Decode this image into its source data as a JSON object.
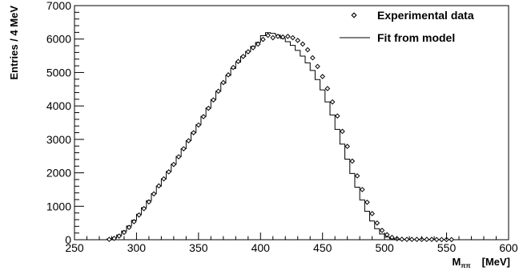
{
  "chart_data": {
    "type": "line",
    "title": "",
    "xlabel": {
      "main": "M",
      "subscript": "ππ",
      "unit": "[MeV]"
    },
    "ylabel": "Entries / 4 MeV",
    "xlim": [
      250,
      600
    ],
    "ylim": [
      0,
      7000
    ],
    "x_ticks": [
      "250",
      "300",
      "350",
      "400",
      "450",
      "500",
      "550",
      "600"
    ],
    "y_ticks": [
      "0",
      "1000",
      "2000",
      "3000",
      "4000",
      "5000",
      "6000",
      "7000"
    ],
    "grid": false,
    "legend_position": "top-right",
    "bin_width": 4,
    "series": [
      {
        "name": "Experimental data",
        "style": "open-diamond-markers",
        "color": "#000000",
        "x": [
          278,
          282,
          286,
          290,
          294,
          298,
          302,
          306,
          310,
          314,
          318,
          322,
          326,
          330,
          334,
          338,
          342,
          346,
          350,
          354,
          358,
          362,
          366,
          370,
          374,
          378,
          382,
          386,
          390,
          394,
          398,
          402,
          406,
          410,
          414,
          418,
          422,
          426,
          430,
          434,
          438,
          442,
          446,
          450,
          454,
          458,
          462,
          466,
          470,
          474,
          478,
          482,
          486,
          490,
          494,
          498,
          502,
          506,
          510,
          514,
          518,
          522,
          526,
          530,
          534,
          538,
          542,
          546,
          550,
          554
        ],
        "y": [
          10,
          40,
          110,
          220,
          370,
          540,
          740,
          930,
          1130,
          1370,
          1610,
          1820,
          2030,
          2250,
          2480,
          2720,
          2960,
          3200,
          3430,
          3680,
          3930,
          4180,
          4440,
          4700,
          4930,
          5150,
          5330,
          5480,
          5620,
          5740,
          5850,
          5990,
          6110,
          6040,
          6080,
          6060,
          6080,
          6040,
          5960,
          5850,
          5680,
          5440,
          5180,
          4880,
          4520,
          4120,
          3700,
          3240,
          2790,
          2350,
          1910,
          1500,
          1120,
          780,
          500,
          280,
          150,
          70,
          30,
          15,
          10,
          10,
          10,
          10,
          10,
          10,
          5,
          5,
          5,
          5
        ]
      },
      {
        "name": "Fit from model",
        "style": "histogram-step-line",
        "color": "#000000",
        "x": [
          278,
          282,
          286,
          290,
          294,
          298,
          302,
          306,
          310,
          314,
          318,
          322,
          326,
          330,
          334,
          338,
          342,
          346,
          350,
          354,
          358,
          362,
          366,
          370,
          374,
          378,
          382,
          386,
          390,
          394,
          398,
          402,
          406,
          410,
          414,
          418,
          422,
          426,
          430,
          434,
          438,
          442,
          446,
          450,
          454,
          458,
          462,
          466,
          470,
          474,
          478,
          482,
          486,
          490,
          494,
          498,
          502,
          506,
          510,
          514,
          518,
          522,
          526,
          530
        ],
        "y": [
          20,
          60,
          140,
          260,
          410,
          580,
          760,
          960,
          1170,
          1380,
          1600,
          1820,
          2040,
          2260,
          2490,
          2720,
          2960,
          3200,
          3440,
          3690,
          3940,
          4190,
          4440,
          4680,
          4910,
          5120,
          5310,
          5480,
          5630,
          5780,
          5900,
          6100,
          6190,
          6170,
          6120,
          6020,
          5920,
          5810,
          5660,
          5490,
          5290,
          5060,
          4790,
          4480,
          4120,
          3730,
          3300,
          2860,
          2410,
          1980,
          1570,
          1190,
          850,
          560,
          330,
          170,
          80,
          30,
          10,
          5,
          0,
          0,
          0,
          0
        ]
      }
    ]
  }
}
